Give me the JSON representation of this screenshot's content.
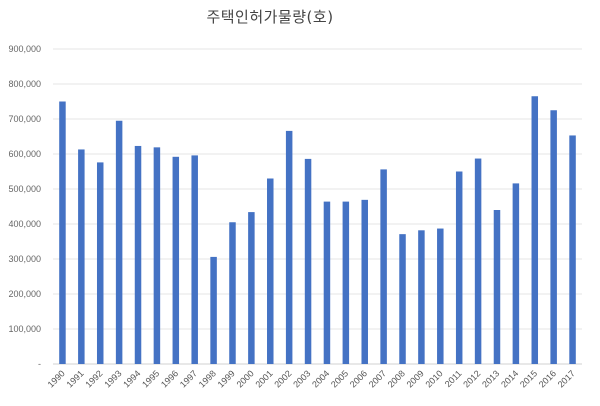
{
  "chart_data": {
    "type": "bar",
    "title": "주택인허가물량(호)",
    "xlabel": "",
    "ylabel": "",
    "ylim": [
      0,
      900000
    ],
    "y_ticks": [
      0,
      100000,
      200000,
      300000,
      400000,
      500000,
      600000,
      700000,
      800000,
      900000
    ],
    "y_tick_labels": [
      "-",
      "100,000",
      "200,000",
      "300,000",
      "400,000",
      "500,000",
      "600,000",
      "700,000",
      "800,000",
      "900,000"
    ],
    "grid": true,
    "legend": "none",
    "bar_color": "#4472C4",
    "categories": [
      "1990",
      "1991",
      "1992",
      "1993",
      "1994",
      "1995",
      "1996",
      "1997",
      "1998",
      "1999",
      "2000",
      "2001",
      "2002",
      "2003",
      "2004",
      "2005",
      "2006",
      "2007",
      "2008",
      "2009",
      "2010",
      "2011",
      "2012",
      "2013",
      "2014",
      "2015",
      "2016",
      "2017"
    ],
    "values": [
      750000,
      613000,
      576000,
      695000,
      623000,
      619000,
      592000,
      596000,
      306000,
      405000,
      434000,
      530000,
      666000,
      586000,
      464000,
      464000,
      469000,
      556000,
      371000,
      382000,
      387000,
      550000,
      587000,
      440000,
      516000,
      765000,
      725000,
      653000
    ]
  }
}
